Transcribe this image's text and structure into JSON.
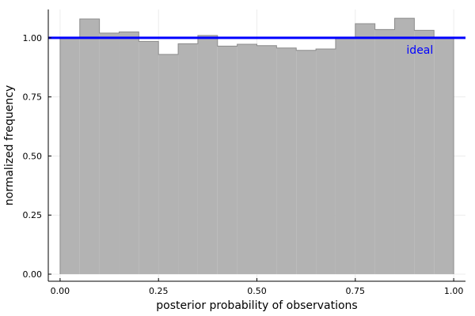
{
  "chart_data": {
    "type": "bar",
    "title": "",
    "xlabel": "posterior probability of observations",
    "ylabel": "normalized frequency",
    "xlim": [
      -0.03,
      1.03
    ],
    "ylim": [
      -0.03,
      1.12
    ],
    "grid": true,
    "bin_width": 0.05,
    "bins": [
      {
        "x0": 0.0,
        "x1": 0.05,
        "y": 1.0
      },
      {
        "x0": 0.05,
        "x1": 0.1,
        "y": 1.08
      },
      {
        "x0": 0.1,
        "x1": 0.15,
        "y": 1.02
      },
      {
        "x0": 0.15,
        "x1": 0.2,
        "y": 1.025
      },
      {
        "x0": 0.2,
        "x1": 0.25,
        "y": 0.985
      },
      {
        "x0": 0.25,
        "x1": 0.3,
        "y": 0.93
      },
      {
        "x0": 0.3,
        "x1": 0.35,
        "y": 0.975
      },
      {
        "x0": 0.35,
        "x1": 0.4,
        "y": 1.01
      },
      {
        "x0": 0.4,
        "x1": 0.45,
        "y": 0.965
      },
      {
        "x0": 0.45,
        "x1": 0.5,
        "y": 0.973
      },
      {
        "x0": 0.5,
        "x1": 0.55,
        "y": 0.967
      },
      {
        "x0": 0.55,
        "x1": 0.6,
        "y": 0.957
      },
      {
        "x0": 0.6,
        "x1": 0.65,
        "y": 0.947
      },
      {
        "x0": 0.65,
        "x1": 0.7,
        "y": 0.953
      },
      {
        "x0": 0.7,
        "x1": 0.75,
        "y": 1.0
      },
      {
        "x0": 0.75,
        "x1": 0.8,
        "y": 1.06
      },
      {
        "x0": 0.8,
        "x1": 0.85,
        "y": 1.035
      },
      {
        "x0": 0.85,
        "x1": 0.9,
        "y": 1.083
      },
      {
        "x0": 0.9,
        "x1": 0.95,
        "y": 1.032
      },
      {
        "x0": 0.95,
        "x1": 1.0,
        "y": 1.0
      }
    ],
    "reference_line": {
      "y": 1.0,
      "label": "ideal",
      "color": "#0000ff"
    },
    "xticks": [
      {
        "value": 0.0,
        "label": "0.00"
      },
      {
        "value": 0.25,
        "label": "0.25"
      },
      {
        "value": 0.5,
        "label": "0.50"
      },
      {
        "value": 0.75,
        "label": "0.75"
      },
      {
        "value": 1.0,
        "label": "1.00"
      }
    ],
    "yticks": [
      {
        "value": 0.0,
        "label": "0.00"
      },
      {
        "value": 0.25,
        "label": "0.25"
      },
      {
        "value": 0.5,
        "label": "0.50"
      },
      {
        "value": 0.75,
        "label": "0.75"
      },
      {
        "value": 1.0,
        "label": "1.00"
      }
    ],
    "bar_fill": "#b3b3b3",
    "bar_stroke": "#8c8c8c"
  }
}
